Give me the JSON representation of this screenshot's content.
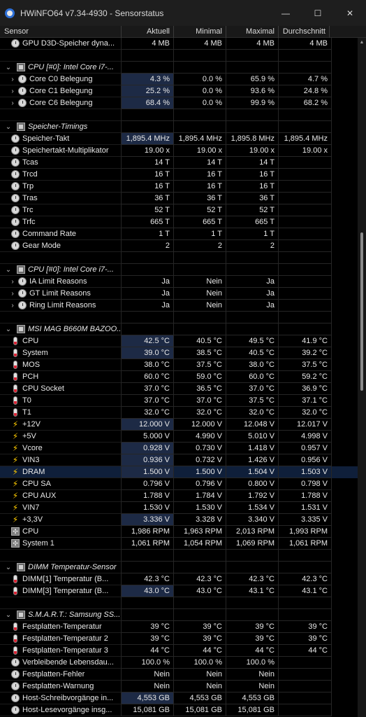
{
  "window": {
    "title": "HWiNFO64 v7.34-4930 - Sensorstatus",
    "minimize": "—",
    "maximize": "☐",
    "close": "✕"
  },
  "columns": {
    "sensor": "Sensor",
    "current": "Aktuell",
    "min": "Minimal",
    "max": "Maximal",
    "avg": "Durchschnitt"
  },
  "rows": [
    {
      "kind": "item",
      "icon": "clock-icon",
      "expand": false,
      "label": "GPU D3D-Speicher dyna...",
      "cur": "4 MB",
      "min": "4 MB",
      "max": "4 MB",
      "avg": "4 MB"
    },
    {
      "kind": "blank"
    },
    {
      "kind": "group",
      "label": "CPU [#0]: Intel Core i7-..."
    },
    {
      "kind": "item",
      "icon": "clock-icon",
      "expand": true,
      "label": "Core C0 Belegung",
      "cur": "4.3 %",
      "min": "0.0 %",
      "max": "65.9 %",
      "avg": "4.7 %",
      "hl": true
    },
    {
      "kind": "item",
      "icon": "clock-icon",
      "expand": true,
      "label": "Core C1 Belegung",
      "cur": "25.2 %",
      "min": "0.0 %",
      "max": "93.6 %",
      "avg": "24.8 %",
      "hl": true
    },
    {
      "kind": "item",
      "icon": "clock-icon",
      "expand": true,
      "label": "Core C6 Belegung",
      "cur": "68.4 %",
      "min": "0.0 %",
      "max": "99.9 %",
      "avg": "68.2 %",
      "hl": true
    },
    {
      "kind": "blank"
    },
    {
      "kind": "group",
      "label": "Speicher-Timings"
    },
    {
      "kind": "item",
      "icon": "clock-icon",
      "label": "Speicher-Takt",
      "cur": "1,895.4 MHz",
      "min": "1,895.4 MHz",
      "max": "1,895.8 MHz",
      "avg": "1,895.4 MHz",
      "hl": true
    },
    {
      "kind": "item",
      "icon": "clock-icon",
      "label": "Speichertakt-Multiplikator",
      "cur": "19.00 x",
      "min": "19.00 x",
      "max": "19.00 x",
      "avg": "19.00 x"
    },
    {
      "kind": "item",
      "icon": "clock-icon",
      "label": "Tcas",
      "cur": "14 T",
      "min": "14 T",
      "max": "14 T",
      "avg": ""
    },
    {
      "kind": "item",
      "icon": "clock-icon",
      "label": "Trcd",
      "cur": "16 T",
      "min": "16 T",
      "max": "16 T",
      "avg": ""
    },
    {
      "kind": "item",
      "icon": "clock-icon",
      "label": "Trp",
      "cur": "16 T",
      "min": "16 T",
      "max": "16 T",
      "avg": ""
    },
    {
      "kind": "item",
      "icon": "clock-icon",
      "label": "Tras",
      "cur": "36 T",
      "min": "36 T",
      "max": "36 T",
      "avg": ""
    },
    {
      "kind": "item",
      "icon": "clock-icon",
      "label": "Trc",
      "cur": "52 T",
      "min": "52 T",
      "max": "52 T",
      "avg": ""
    },
    {
      "kind": "item",
      "icon": "clock-icon",
      "label": "Trfc",
      "cur": "665 T",
      "min": "665 T",
      "max": "665 T",
      "avg": ""
    },
    {
      "kind": "item",
      "icon": "clock-icon",
      "label": "Command Rate",
      "cur": "1 T",
      "min": "1 T",
      "max": "1 T",
      "avg": ""
    },
    {
      "kind": "item",
      "icon": "clock-icon",
      "label": "Gear Mode",
      "cur": "2",
      "min": "2",
      "max": "2",
      "avg": ""
    },
    {
      "kind": "blank"
    },
    {
      "kind": "group",
      "label": "CPU [#0]: Intel Core i7-..."
    },
    {
      "kind": "item",
      "icon": "clock-icon",
      "expand": true,
      "label": "IA Limit Reasons",
      "cur": "Ja",
      "min": "Nein",
      "max": "Ja",
      "avg": ""
    },
    {
      "kind": "item",
      "icon": "clock-icon",
      "expand": true,
      "label": "GT Limit Reasons",
      "cur": "Ja",
      "min": "Nein",
      "max": "Ja",
      "avg": ""
    },
    {
      "kind": "item",
      "icon": "clock-icon",
      "expand": true,
      "label": "Ring Limit Reasons",
      "cur": "Ja",
      "min": "Nein",
      "max": "Ja",
      "avg": ""
    },
    {
      "kind": "blank"
    },
    {
      "kind": "group",
      "label": "MSI MAG B660M BAZOO..."
    },
    {
      "kind": "item",
      "icon": "thermometer-icon",
      "label": "CPU",
      "cur": "42.5 °C",
      "min": "40.5 °C",
      "max": "49.5 °C",
      "avg": "41.9 °C",
      "hl": true
    },
    {
      "kind": "item",
      "icon": "thermometer-icon",
      "label": "System",
      "cur": "39.0 °C",
      "min": "38.5 °C",
      "max": "40.5 °C",
      "avg": "39.2 °C",
      "hl": true
    },
    {
      "kind": "item",
      "icon": "thermometer-icon",
      "label": "MOS",
      "cur": "38.0 °C",
      "min": "37.5 °C",
      "max": "38.0 °C",
      "avg": "37.5 °C"
    },
    {
      "kind": "item",
      "icon": "thermometer-icon",
      "label": "PCH",
      "cur": "60.0 °C",
      "min": "59.0 °C",
      "max": "60.0 °C",
      "avg": "59.2 °C"
    },
    {
      "kind": "item",
      "icon": "thermometer-icon",
      "label": "CPU Socket",
      "cur": "37.0 °C",
      "min": "36.5 °C",
      "max": "37.0 °C",
      "avg": "36.9 °C"
    },
    {
      "kind": "item",
      "icon": "thermometer-icon",
      "label": "T0",
      "cur": "37.0 °C",
      "min": "37.0 °C",
      "max": "37.5 °C",
      "avg": "37.1 °C"
    },
    {
      "kind": "item",
      "icon": "thermometer-icon",
      "label": "T1",
      "cur": "32.0 °C",
      "min": "32.0 °C",
      "max": "32.0 °C",
      "avg": "32.0 °C"
    },
    {
      "kind": "item",
      "icon": "bolt-icon",
      "label": "+12V",
      "cur": "12.000 V",
      "min": "12.000 V",
      "max": "12.048 V",
      "avg": "12.017 V",
      "hl": true
    },
    {
      "kind": "item",
      "icon": "bolt-icon",
      "label": "+5V",
      "cur": "5.000 V",
      "min": "4.990 V",
      "max": "5.010 V",
      "avg": "4.998 V"
    },
    {
      "kind": "item",
      "icon": "bolt-icon",
      "label": "Vcore",
      "cur": "0.928 V",
      "min": "0.730 V",
      "max": "1.418 V",
      "avg": "0.957 V",
      "hl": true
    },
    {
      "kind": "item",
      "icon": "bolt-icon",
      "label": "VIN3",
      "cur": "0.936 V",
      "min": "0.732 V",
      "max": "1.426 V",
      "avg": "0.956 V",
      "hl": true
    },
    {
      "kind": "item",
      "icon": "bolt-icon",
      "label": "DRAM",
      "cur": "1.500 V",
      "min": "1.500 V",
      "max": "1.504 V",
      "avg": "1.503 V",
      "hl": true,
      "selected": true
    },
    {
      "kind": "item",
      "icon": "bolt-icon",
      "label": "CPU SA",
      "cur": "0.796 V",
      "min": "0.796 V",
      "max": "0.800 V",
      "avg": "0.798 V"
    },
    {
      "kind": "item",
      "icon": "bolt-icon",
      "label": "CPU AUX",
      "cur": "1.788 V",
      "min": "1.784 V",
      "max": "1.792 V",
      "avg": "1.788 V"
    },
    {
      "kind": "item",
      "icon": "bolt-icon",
      "label": "VIN7",
      "cur": "1.530 V",
      "min": "1.530 V",
      "max": "1.534 V",
      "avg": "1.531 V"
    },
    {
      "kind": "item",
      "icon": "bolt-icon",
      "label": "+3,3V",
      "cur": "3.336 V",
      "min": "3.328 V",
      "max": "3.340 V",
      "avg": "3.335 V",
      "hl": true
    },
    {
      "kind": "item",
      "icon": "fan-icon",
      "label": "CPU",
      "cur": "1,986 RPM",
      "min": "1,963 RPM",
      "max": "2,013 RPM",
      "avg": "1,993 RPM"
    },
    {
      "kind": "item",
      "icon": "fan-icon",
      "label": "System 1",
      "cur": "1,061 RPM",
      "min": "1,054 RPM",
      "max": "1,069 RPM",
      "avg": "1,061 RPM"
    },
    {
      "kind": "blank"
    },
    {
      "kind": "group",
      "label": "DIMM Temperatur-Sensor"
    },
    {
      "kind": "item",
      "icon": "thermometer-icon",
      "label": "DIMM[1] Temperatur (B...",
      "cur": "42.3 °C",
      "min": "42.3 °C",
      "max": "42.3 °C",
      "avg": "42.3 °C"
    },
    {
      "kind": "item",
      "icon": "thermometer-icon",
      "label": "DIMM[3] Temperatur (B...",
      "cur": "43.0 °C",
      "min": "43.0 °C",
      "max": "43.1 °C",
      "avg": "43.1 °C",
      "hl": true
    },
    {
      "kind": "blank"
    },
    {
      "kind": "group",
      "label": "S.M.A.R.T.: Samsung SS..."
    },
    {
      "kind": "item",
      "icon": "thermometer-icon",
      "label": "Festplatten-Temperatur",
      "cur": "39 °C",
      "min": "39 °C",
      "max": "39 °C",
      "avg": "39 °C"
    },
    {
      "kind": "item",
      "icon": "thermometer-icon",
      "label": "Festplatten-Temperatur 2",
      "cur": "39 °C",
      "min": "39 °C",
      "max": "39 °C",
      "avg": "39 °C"
    },
    {
      "kind": "item",
      "icon": "thermometer-icon",
      "label": "Festplatten-Temperatur 3",
      "cur": "44 °C",
      "min": "44 °C",
      "max": "44 °C",
      "avg": "44 °C"
    },
    {
      "kind": "item",
      "icon": "clock-icon",
      "label": "Verbleibende Lebensdau...",
      "cur": "100.0 %",
      "min": "100.0 %",
      "max": "100.0 %",
      "avg": ""
    },
    {
      "kind": "item",
      "icon": "clock-icon",
      "label": "Festplatten-Fehler",
      "cur": "Nein",
      "min": "Nein",
      "max": "Nein",
      "avg": ""
    },
    {
      "kind": "item",
      "icon": "clock-icon",
      "label": "Festplatten-Warnung",
      "cur": "Nein",
      "min": "Nein",
      "max": "Nein",
      "avg": ""
    },
    {
      "kind": "item",
      "icon": "clock-icon",
      "label": "Host-Schreibvorgänge in...",
      "cur": "4,553 GB",
      "min": "4,553 GB",
      "max": "4,553 GB",
      "avg": "",
      "hl": true
    },
    {
      "kind": "item",
      "icon": "clock-icon",
      "label": "Host-Lesevorgänge insg...",
      "cur": "15,081 GB",
      "min": "15,081 GB",
      "max": "15,081 GB",
      "avg": ""
    }
  ],
  "colors": {
    "background": "#000000",
    "titlebar": "#1e1e1e",
    "highlight": "#1d2a45",
    "selected_row": "#0f1f3a"
  }
}
